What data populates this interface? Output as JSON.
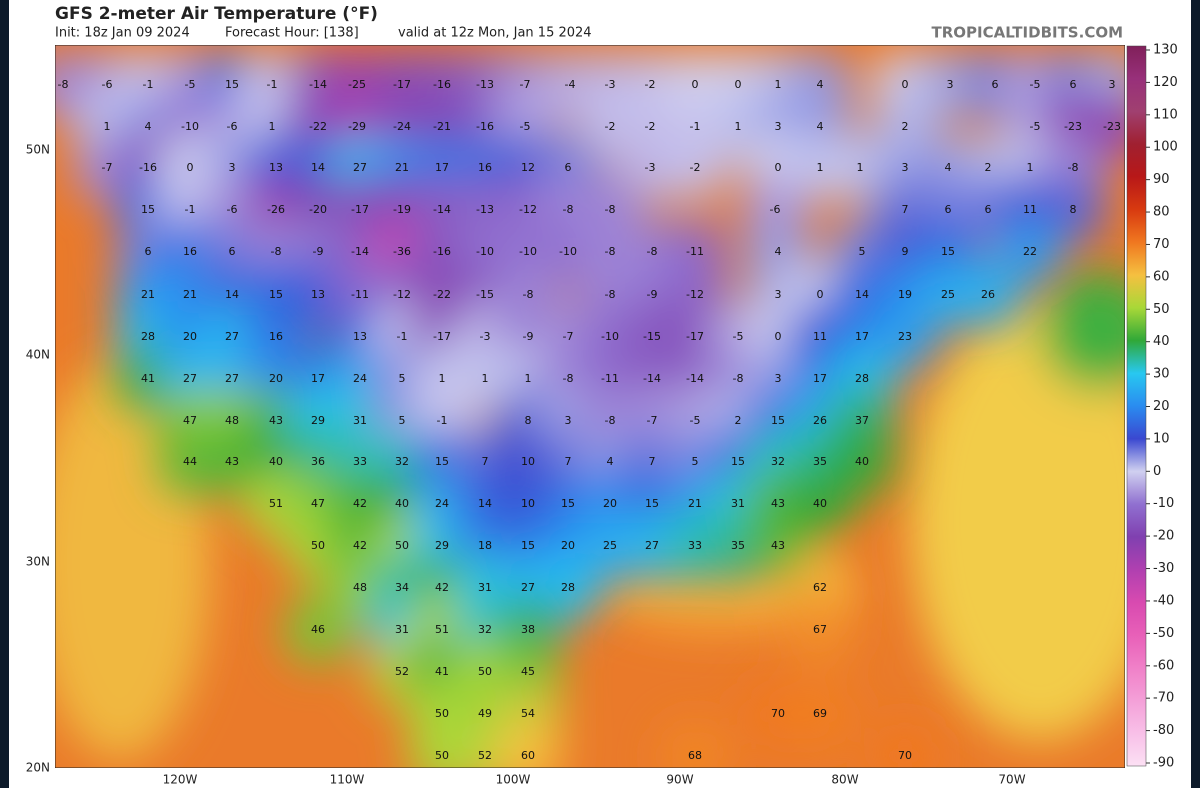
{
  "header": {
    "title": "GFS 2-meter Air Temperature (°F)",
    "init": "Init: 18z Jan 09 2024",
    "forecast_hour": "Forecast Hour: [138]",
    "valid": "valid at 12z Mon, Jan 15 2024",
    "site": "TROPICALTIDBITS.COM"
  },
  "map": {
    "lat_labels": [
      "50N",
      "40N",
      "30N",
      "20N"
    ],
    "lon_labels": [
      "120W",
      "110W",
      "100W",
      "90W",
      "80W",
      "70W"
    ],
    "rows": [
      [
        -8,
        -6,
        -1,
        -5,
        15,
        -1,
        -14,
        -25,
        -17,
        -16,
        -13,
        -7,
        -4,
        -3,
        -2,
        0,
        0,
        1,
        4,
        0,
        3,
        6,
        -5,
        6,
        3
      ],
      [
        1,
        4,
        -10,
        -6,
        1,
        -22,
        -29,
        -24,
        -21,
        -16,
        -5,
        -2,
        -2,
        -1,
        1,
        3,
        4,
        2,
        -5,
        -23,
        -23
      ],
      [
        -7,
        -16,
        0,
        3,
        13,
        14,
        27,
        21,
        17,
        16,
        12,
        6,
        -3,
        -2,
        0,
        1,
        1,
        3,
        4,
        2,
        1,
        -8
      ],
      [
        15,
        -1,
        -6,
        -26,
        -20,
        -17,
        -19,
        -14,
        -13,
        -12,
        -8,
        -8,
        -6,
        7,
        6,
        6,
        11,
        8
      ],
      [
        6,
        16,
        6,
        -8,
        -9,
        -14,
        -36,
        -16,
        -10,
        -10,
        -10,
        -8,
        -8,
        -11,
        4,
        5,
        9,
        15,
        22
      ],
      [
        21,
        21,
        14,
        15,
        13,
        -11,
        -12,
        -22,
        -15,
        -8,
        -8,
        -9,
        -12,
        3,
        0,
        14,
        19,
        25,
        26
      ],
      [
        28,
        20,
        27,
        16,
        13,
        -1,
        -17,
        -3,
        -9,
        -7,
        -10,
        -15,
        -17,
        -5,
        0,
        11,
        17,
        23
      ],
      [
        41,
        27,
        27,
        20,
        17,
        24,
        5,
        1,
        1,
        1,
        -8,
        -11,
        -14,
        -14,
        -8,
        3,
        17,
        28
      ],
      [
        47,
        48,
        43,
        29,
        31,
        5,
        -1,
        8,
        3,
        -8,
        -7,
        -5,
        2,
        15,
        26,
        37
      ],
      [
        44,
        43,
        40,
        36,
        33,
        32,
        15,
        7,
        10,
        7,
        4,
        7,
        5,
        15,
        32,
        35,
        40
      ],
      [
        51,
        47,
        42,
        40,
        24,
        14,
        10,
        15,
        20,
        15,
        21,
        31,
        43,
        40
      ],
      [
        50,
        42,
        50,
        29,
        18,
        15,
        20,
        25,
        27,
        33,
        35,
        43
      ],
      [
        48,
        34,
        42,
        31,
        27,
        28,
        62
      ],
      [
        46,
        31,
        51,
        32,
        38,
        67
      ],
      [
        52,
        41,
        50,
        45
      ],
      [
        50,
        49,
        54,
        70,
        69
      ],
      [
        50,
        52,
        60,
        68,
        70
      ]
    ]
  },
  "colorbar": {
    "ticks": [
      130,
      120,
      110,
      100,
      90,
      80,
      70,
      60,
      50,
      40,
      30,
      20,
      10,
      0,
      -10,
      -20,
      -30,
      -40,
      -50,
      -60,
      -70,
      -80,
      -90
    ],
    "colors": [
      "#80205a",
      "#98307a",
      "#a04070",
      "#a02030",
      "#b81818",
      "#d83a10",
      "#f07820",
      "#f5c040",
      "#a8d838",
      "#30a838",
      "#28c8f0",
      "#2a8cf0",
      "#3a48d0",
      "#d0d0f0",
      "#9070d0",
      "#8040b0",
      "#b040b0",
      "#d84ab0",
      "#e860b8",
      "#f080c8",
      "#f4a0d8",
      "#f8c0e8",
      "#fce0f4"
    ]
  }
}
